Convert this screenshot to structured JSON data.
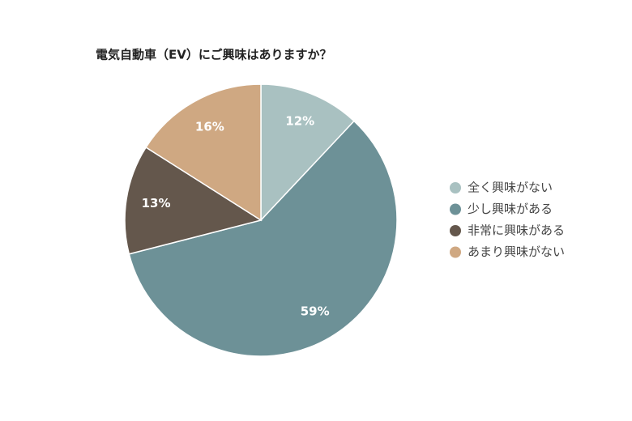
{
  "chart_data": {
    "type": "pie",
    "title": "電気自動車（EV）にご興味はありますか？",
    "categories": [
      "全く興味がない",
      "少し興味がある",
      "非常に興味がある",
      "あまり興味がない"
    ],
    "values": [
      12,
      59,
      13,
      16
    ],
    "value_labels": [
      "12%",
      "59%",
      "13%",
      "16%"
    ],
    "colors": [
      "#a9c1c1",
      "#6d9197",
      "#64574c",
      "#cfa882"
    ]
  }
}
